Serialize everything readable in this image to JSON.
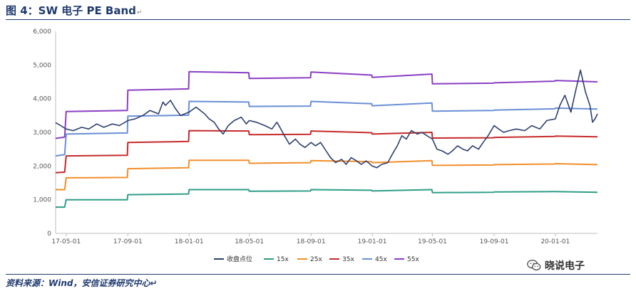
{
  "header": {
    "title": "图 4：SW 电子 PE Band",
    "title_mark": "↵"
  },
  "footer": {
    "source": "资料来源：Wind，安信证券研究中心↵"
  },
  "watermark": {
    "text": "晓说电子",
    "icon": "wechat-icon"
  },
  "chart_data": {
    "type": "line",
    "title": "",
    "xlabel": "",
    "ylabel": "",
    "x_ticks": [
      "17-05-01",
      "17-09-01",
      "18-01-01",
      "18-05-01",
      "18-09-01",
      "19-01-01",
      "19-05-01",
      "19-09-01",
      "20-01-01"
    ],
    "y_ticks": [
      "0",
      "1,000",
      "2,000",
      "3,000",
      "4,000",
      "5,000",
      "6,000"
    ],
    "ylim": [
      0,
      6000
    ],
    "xlim": [
      "2017-04-10",
      "2020-03-25"
    ],
    "grid": false,
    "legend_position": "bottom",
    "series": [
      {
        "name": "收盘点位",
        "color": "#2e3f6e",
        "points": [
          [
            "2017-04-10",
            3290
          ],
          [
            "2017-04-20",
            3200
          ],
          [
            "2017-05-01",
            3100
          ],
          [
            "2017-05-15",
            3050
          ],
          [
            "2017-06-01",
            3150
          ],
          [
            "2017-06-15",
            3100
          ],
          [
            "2017-07-01",
            3250
          ],
          [
            "2017-07-15",
            3150
          ],
          [
            "2017-08-01",
            3250
          ],
          [
            "2017-08-15",
            3200
          ],
          [
            "2017-09-01",
            3350
          ],
          [
            "2017-09-15",
            3400
          ],
          [
            "2017-10-01",
            3500
          ],
          [
            "2017-10-15",
            3650
          ],
          [
            "2017-11-01",
            3550
          ],
          [
            "2017-11-10",
            3900
          ],
          [
            "2017-11-15",
            3800
          ],
          [
            "2017-11-25",
            3950
          ],
          [
            "2017-12-05",
            3700
          ],
          [
            "2017-12-15",
            3500
          ],
          [
            "2018-01-01",
            3600
          ],
          [
            "2018-01-15",
            3750
          ],
          [
            "2018-02-01",
            3550
          ],
          [
            "2018-02-10",
            3400
          ],
          [
            "2018-02-20",
            3300
          ],
          [
            "2018-03-01",
            3100
          ],
          [
            "2018-03-10",
            2950
          ],
          [
            "2018-03-20",
            3200
          ],
          [
            "2018-04-01",
            3350
          ],
          [
            "2018-04-15",
            3450
          ],
          [
            "2018-04-25",
            3250
          ],
          [
            "2018-05-01",
            3350
          ],
          [
            "2018-05-15",
            3300
          ],
          [
            "2018-06-01",
            3200
          ],
          [
            "2018-06-15",
            3100
          ],
          [
            "2018-06-25",
            3300
          ],
          [
            "2018-07-01",
            3150
          ],
          [
            "2018-07-10",
            2900
          ],
          [
            "2018-07-20",
            2650
          ],
          [
            "2018-08-01",
            2800
          ],
          [
            "2018-08-10",
            2650
          ],
          [
            "2018-08-20",
            2550
          ],
          [
            "2018-09-01",
            2700
          ],
          [
            "2018-09-10",
            2600
          ],
          [
            "2018-09-20",
            2700
          ],
          [
            "2018-10-01",
            2450
          ],
          [
            "2018-10-10",
            2250
          ],
          [
            "2018-10-20",
            2100
          ],
          [
            "2018-11-01",
            2200
          ],
          [
            "2018-11-10",
            2050
          ],
          [
            "2018-11-20",
            2250
          ],
          [
            "2018-12-01",
            2150
          ],
          [
            "2018-12-10",
            2050
          ],
          [
            "2018-12-20",
            2150
          ],
          [
            "2019-01-01",
            2000
          ],
          [
            "2019-01-10",
            1950
          ],
          [
            "2019-01-20",
            2050
          ],
          [
            "2019-02-01",
            2100
          ],
          [
            "2019-02-10",
            2350
          ],
          [
            "2019-02-20",
            2600
          ],
          [
            "2019-03-01",
            2900
          ],
          [
            "2019-03-10",
            2800
          ],
          [
            "2019-03-20",
            3050
          ],
          [
            "2019-04-01",
            2950
          ],
          [
            "2019-04-10",
            3000
          ],
          [
            "2019-04-20",
            2900
          ],
          [
            "2019-05-01",
            2800
          ],
          [
            "2019-05-10",
            2500
          ],
          [
            "2019-05-20",
            2450
          ],
          [
            "2019-06-01",
            2350
          ],
          [
            "2019-06-10",
            2450
          ],
          [
            "2019-06-20",
            2600
          ],
          [
            "2019-07-01",
            2500
          ],
          [
            "2019-07-10",
            2450
          ],
          [
            "2019-07-20",
            2600
          ],
          [
            "2019-08-01",
            2500
          ],
          [
            "2019-08-10",
            2700
          ],
          [
            "2019-08-20",
            2900
          ],
          [
            "2019-09-01",
            3200
          ],
          [
            "2019-09-10",
            3100
          ],
          [
            "2019-09-20",
            3000
          ],
          [
            "2019-10-01",
            3050
          ],
          [
            "2019-10-15",
            3100
          ],
          [
            "2019-11-01",
            3050
          ],
          [
            "2019-11-15",
            3200
          ],
          [
            "2019-12-01",
            3100
          ],
          [
            "2019-12-15",
            3350
          ],
          [
            "2020-01-01",
            3400
          ],
          [
            "2020-01-10",
            3800
          ],
          [
            "2020-01-20",
            4100
          ],
          [
            "2020-02-01",
            3600
          ],
          [
            "2020-02-10",
            4200
          ],
          [
            "2020-02-20",
            4850
          ],
          [
            "2020-03-01",
            4200
          ],
          [
            "2020-03-10",
            3800
          ],
          [
            "2020-03-15",
            3300
          ],
          [
            "2020-03-20",
            3400
          ],
          [
            "2020-03-25",
            3550
          ]
        ]
      },
      {
        "name": "15x",
        "color": "#2f9e87",
        "points": [
          [
            "2017-04-10",
            780
          ],
          [
            "2017-04-28",
            780
          ],
          [
            "2017-05-01",
            1000
          ],
          [
            "2017-08-31",
            1000
          ],
          [
            "2017-09-01",
            1150
          ],
          [
            "2017-12-31",
            1170
          ],
          [
            "2018-01-01",
            1300
          ],
          [
            "2018-04-30",
            1300
          ],
          [
            "2018-05-01",
            1250
          ],
          [
            "2018-08-31",
            1260
          ],
          [
            "2018-09-01",
            1300
          ],
          [
            "2018-12-31",
            1280
          ],
          [
            "2019-01-01",
            1260
          ],
          [
            "2019-04-30",
            1300
          ],
          [
            "2019-05-01",
            1210
          ],
          [
            "2019-08-31",
            1220
          ],
          [
            "2019-09-01",
            1230
          ],
          [
            "2019-12-31",
            1240
          ],
          [
            "2020-01-01",
            1240
          ],
          [
            "2020-03-25",
            1220
          ]
        ]
      },
      {
        "name": "25x",
        "color": "#f28e2b",
        "points": [
          [
            "2017-04-10",
            1300
          ],
          [
            "2017-04-28",
            1300
          ],
          [
            "2017-05-01",
            1650
          ],
          [
            "2017-08-31",
            1660
          ],
          [
            "2017-09-01",
            1920
          ],
          [
            "2017-12-31",
            1950
          ],
          [
            "2018-01-01",
            2170
          ],
          [
            "2018-04-30",
            2170
          ],
          [
            "2018-05-01",
            2080
          ],
          [
            "2018-08-31",
            2100
          ],
          [
            "2018-09-01",
            2160
          ],
          [
            "2018-12-31",
            2130
          ],
          [
            "2019-01-01",
            2100
          ],
          [
            "2019-04-30",
            2160
          ],
          [
            "2019-05-01",
            2020
          ],
          [
            "2019-08-31",
            2030
          ],
          [
            "2019-09-01",
            2040
          ],
          [
            "2019-12-31",
            2060
          ],
          [
            "2020-01-01",
            2070
          ],
          [
            "2020-03-25",
            2040
          ]
        ]
      },
      {
        "name": "35x",
        "color": "#c62a2a",
        "points": [
          [
            "2017-04-10",
            1800
          ],
          [
            "2017-04-28",
            1820
          ],
          [
            "2017-05-01",
            2300
          ],
          [
            "2017-08-31",
            2320
          ],
          [
            "2017-09-01",
            2700
          ],
          [
            "2017-12-31",
            2730
          ],
          [
            "2018-01-01",
            3050
          ],
          [
            "2018-04-30",
            3040
          ],
          [
            "2018-05-01",
            2930
          ],
          [
            "2018-08-31",
            2940
          ],
          [
            "2018-09-01",
            3040
          ],
          [
            "2018-12-31",
            2990
          ],
          [
            "2019-01-01",
            2950
          ],
          [
            "2019-04-30",
            3000
          ],
          [
            "2019-05-01",
            2830
          ],
          [
            "2019-08-31",
            2840
          ],
          [
            "2019-09-01",
            2850
          ],
          [
            "2019-12-31",
            2880
          ],
          [
            "2020-01-01",
            2890
          ],
          [
            "2020-03-25",
            2870
          ]
        ]
      },
      {
        "name": "45x",
        "color": "#6a8fd6",
        "points": [
          [
            "2017-04-10",
            2300
          ],
          [
            "2017-04-28",
            2340
          ],
          [
            "2017-05-01",
            2950
          ],
          [
            "2017-08-31",
            2980
          ],
          [
            "2017-09-01",
            3480
          ],
          [
            "2017-12-31",
            3510
          ],
          [
            "2018-01-01",
            3920
          ],
          [
            "2018-04-30",
            3900
          ],
          [
            "2018-05-01",
            3770
          ],
          [
            "2018-08-31",
            3780
          ],
          [
            "2018-09-01",
            3920
          ],
          [
            "2018-12-31",
            3850
          ],
          [
            "2019-01-01",
            3790
          ],
          [
            "2019-04-30",
            3870
          ],
          [
            "2019-05-01",
            3630
          ],
          [
            "2019-08-31",
            3650
          ],
          [
            "2019-09-01",
            3660
          ],
          [
            "2019-12-31",
            3700
          ],
          [
            "2020-01-01",
            3720
          ],
          [
            "2020-03-25",
            3690
          ]
        ]
      },
      {
        "name": "55x",
        "color": "#8b3fc4",
        "points": [
          [
            "2017-04-10",
            2820
          ],
          [
            "2017-04-28",
            2860
          ],
          [
            "2017-05-01",
            3620
          ],
          [
            "2017-08-31",
            3650
          ],
          [
            "2017-09-01",
            4250
          ],
          [
            "2017-12-31",
            4290
          ],
          [
            "2018-01-01",
            4800
          ],
          [
            "2018-04-30",
            4770
          ],
          [
            "2018-05-01",
            4600
          ],
          [
            "2018-08-31",
            4620
          ],
          [
            "2018-09-01",
            4790
          ],
          [
            "2018-12-31",
            4700
          ],
          [
            "2019-01-01",
            4630
          ],
          [
            "2019-04-30",
            4730
          ],
          [
            "2019-05-01",
            4440
          ],
          [
            "2019-08-31",
            4460
          ],
          [
            "2019-09-01",
            4470
          ],
          [
            "2019-12-31",
            4520
          ],
          [
            "2020-01-01",
            4540
          ],
          [
            "2020-03-25",
            4500
          ]
        ]
      }
    ]
  }
}
